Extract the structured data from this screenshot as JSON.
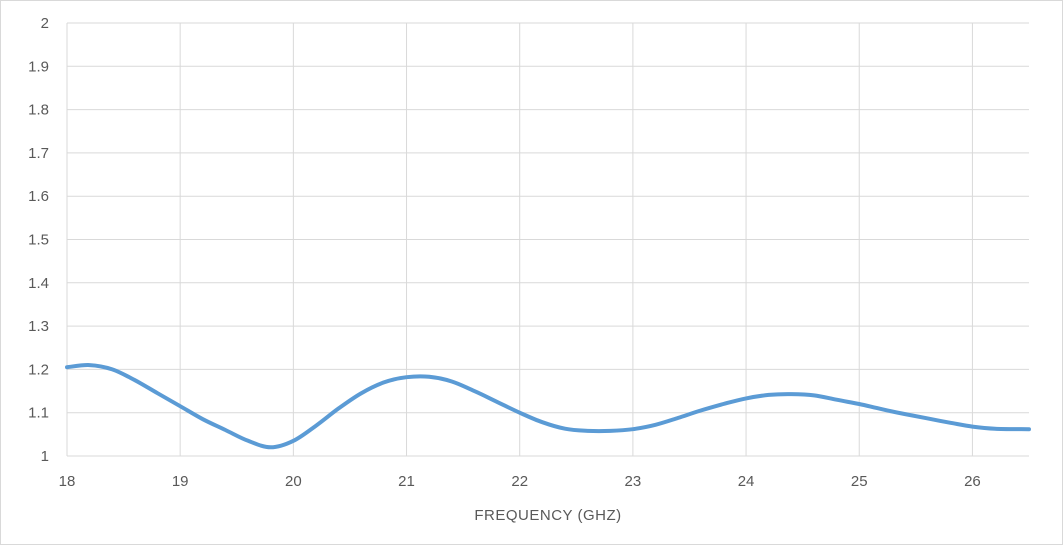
{
  "chart_data": {
    "type": "line",
    "title": "",
    "xlabel": "FREQUENCY (GHZ)",
    "ylabel": "",
    "xlim": [
      18,
      26.5
    ],
    "ylim": [
      1,
      2
    ],
    "x_ticks": [
      "18",
      "19",
      "20",
      "21",
      "22",
      "23",
      "24",
      "25",
      "26"
    ],
    "y_ticks": [
      "1",
      "1.1",
      "1.2",
      "1.3",
      "1.4",
      "1.5",
      "1.6",
      "1.7",
      "1.8",
      "1.9",
      "2"
    ],
    "grid": true,
    "legend": "none",
    "series": [
      {
        "color": "#5b9bd5",
        "x": [
          18.0,
          18.2,
          18.4,
          18.6,
          18.8,
          19.0,
          19.2,
          19.4,
          19.6,
          19.8,
          20.0,
          20.2,
          20.4,
          20.6,
          20.8,
          21.0,
          21.2,
          21.4,
          21.6,
          21.8,
          22.0,
          22.2,
          22.4,
          22.6,
          22.8,
          23.0,
          23.2,
          23.4,
          23.6,
          23.8,
          24.0,
          24.2,
          24.4,
          24.6,
          24.8,
          25.0,
          25.2,
          25.4,
          25.6,
          25.8,
          26.0,
          26.2,
          26.5
        ],
        "y": [
          1.205,
          1.21,
          1.2,
          1.175,
          1.145,
          1.115,
          1.085,
          1.06,
          1.035,
          1.02,
          1.035,
          1.07,
          1.11,
          1.145,
          1.17,
          1.182,
          1.183,
          1.172,
          1.15,
          1.125,
          1.1,
          1.078,
          1.063,
          1.058,
          1.058,
          1.062,
          1.072,
          1.088,
          1.105,
          1.12,
          1.133,
          1.141,
          1.143,
          1.14,
          1.13,
          1.12,
          1.108,
          1.097,
          1.087,
          1.077,
          1.068,
          1.063,
          1.062
        ]
      }
    ]
  }
}
